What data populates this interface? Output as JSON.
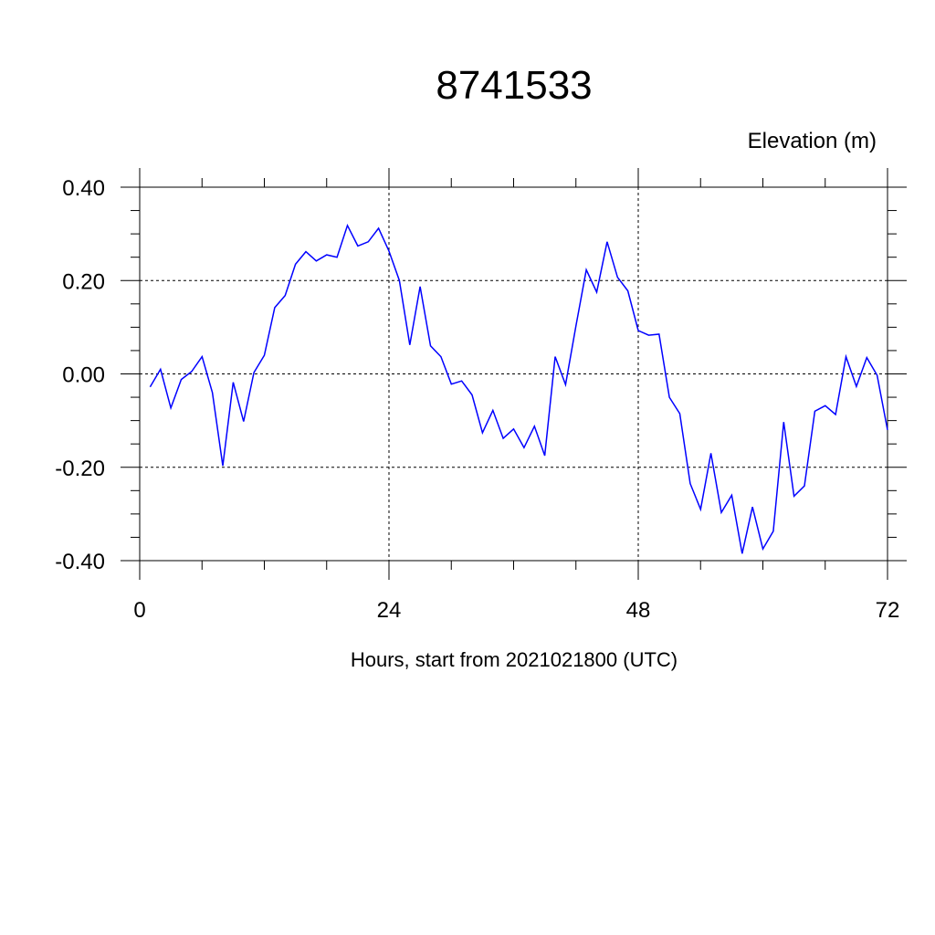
{
  "chart_data": {
    "type": "line",
    "title": "8741533",
    "ylabel": "Elevation (m)",
    "xlabel": "Hours, start from 2021021800 (UTC)",
    "xlim": [
      0,
      72
    ],
    "ylim": [
      -0.4,
      0.4
    ],
    "xticks": [
      0,
      24,
      48,
      72
    ],
    "xtick_labels": [
      "0",
      "24",
      "48",
      "72"
    ],
    "yticks": [
      0.4,
      0.2,
      0.0,
      -0.2,
      -0.4
    ],
    "ytick_labels": [
      "0.40",
      "0.20",
      "0.00",
      "-0.20",
      "-0.40"
    ],
    "grid": true,
    "line_color": "#0000ff",
    "x": [
      1,
      2,
      3,
      4,
      5,
      6,
      7,
      8,
      9,
      10,
      11,
      12,
      13,
      14,
      15,
      16,
      17,
      18,
      19,
      20,
      21,
      22,
      23,
      24,
      25,
      26,
      27,
      28,
      29,
      30,
      31,
      32,
      33,
      34,
      35,
      36,
      37,
      38,
      39,
      40,
      41,
      42,
      43,
      44,
      45,
      46,
      47,
      48,
      49,
      50,
      51,
      52,
      53,
      54,
      55,
      56,
      57,
      58,
      59,
      60,
      61,
      62,
      63,
      64,
      65,
      66,
      67,
      68,
      69,
      70,
      71,
      72
    ],
    "y": [
      -0.028,
      0.01,
      -0.073,
      -0.012,
      0.005,
      0.037,
      -0.04,
      -0.197,
      -0.018,
      -0.102,
      0.003,
      0.04,
      0.142,
      0.168,
      0.235,
      0.262,
      0.242,
      0.255,
      0.25,
      0.318,
      0.274,
      0.283,
      0.312,
      0.263,
      0.2,
      0.062,
      0.187,
      0.06,
      0.037,
      -0.022,
      -0.015,
      -0.045,
      -0.126,
      -0.078,
      -0.138,
      -0.118,
      -0.158,
      -0.112,
      -0.175,
      0.037,
      -0.023,
      0.103,
      0.223,
      0.175,
      0.283,
      0.207,
      0.178,
      0.093,
      0.083,
      0.085,
      -0.05,
      -0.085,
      -0.235,
      -0.29,
      -0.17,
      -0.297,
      -0.26,
      -0.385,
      -0.285,
      -0.375,
      -0.337,
      -0.103,
      -0.262,
      -0.24,
      -0.08,
      -0.068,
      -0.087,
      0.037,
      -0.027,
      0.035,
      -0.003,
      -0.12
    ]
  }
}
